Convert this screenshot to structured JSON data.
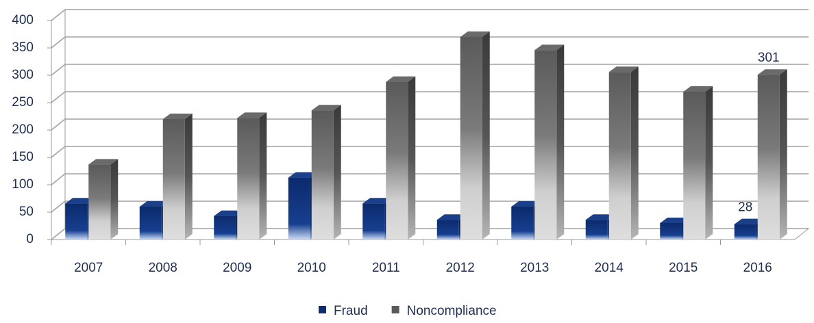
{
  "chart_data": {
    "type": "bar3d",
    "categories": [
      "2007",
      "2008",
      "2009",
      "2010",
      "2011",
      "2012",
      "2013",
      "2014",
      "2015",
      "2016"
    ],
    "series": [
      {
        "name": "Fraud",
        "color": "#0d2d73",
        "values": [
          66,
          60,
          43,
          113,
          66,
          36,
          60,
          36,
          30,
          28
        ]
      },
      {
        "name": "Noncompliance",
        "color": "#5a5a5a",
        "values": [
          137,
          220,
          222,
          236,
          288,
          370,
          346,
          306,
          270,
          301
        ]
      }
    ],
    "ylim": [
      0,
      400
    ],
    "yticks": [
      0,
      50,
      100,
      150,
      200,
      250,
      300,
      350,
      400
    ],
    "grid": true,
    "legend": "bottom"
  }
}
